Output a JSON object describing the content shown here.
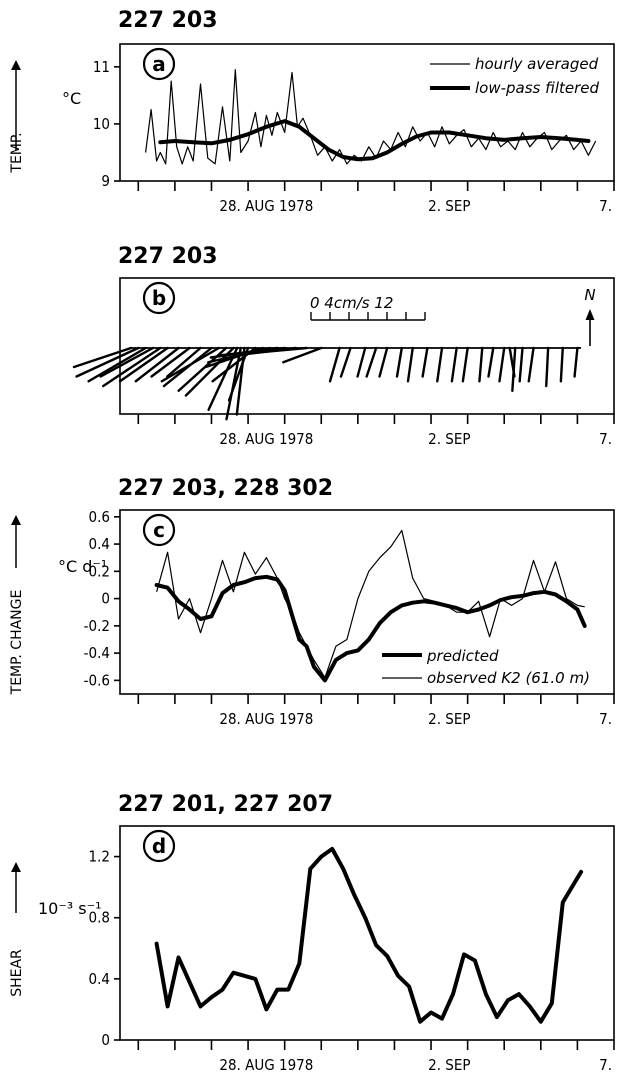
{
  "chart_data": [
    {
      "id": "a",
      "type": "line",
      "title": "227 203",
      "panel_label": "a",
      "ylabel": "TEMP.",
      "yunit": "°C",
      "ylim": [
        9,
        11.4
      ],
      "yticks": [
        {
          "v": 9,
          "label": "9"
        },
        {
          "v": 10,
          "label": "10"
        },
        {
          "v": 11,
          "label": "11"
        }
      ],
      "xlim": [
        24,
        37.5
      ],
      "xticks": [
        24.5,
        25.5,
        26.5,
        27.5,
        28.5,
        29.5,
        30.5,
        31.5,
        32.5,
        33.5,
        34.5,
        35.5,
        36.5,
        37.5
      ],
      "xlabels": [
        {
          "x": 28,
          "label": "28. AUG 1978"
        },
        {
          "x": 33,
          "label": "2. SEP"
        },
        {
          "x": 37.5,
          "label": "7."
        }
      ],
      "legend": [
        "hourly averaged",
        "low-pass filtered"
      ],
      "series": [
        {
          "name": "hourly averaged",
          "style": "thin",
          "x": [
            24.7,
            24.85,
            25.0,
            25.1,
            25.25,
            25.4,
            25.55,
            25.7,
            25.85,
            26.0,
            26.2,
            26.4,
            26.6,
            26.8,
            27.0,
            27.15,
            27.3,
            27.5,
            27.7,
            27.85,
            28.0,
            28.15,
            28.3,
            28.5,
            28.7,
            28.85,
            29.0,
            29.2,
            29.4,
            29.6,
            29.8,
            30.0,
            30.2,
            30.4,
            30.6,
            30.8,
            31.0,
            31.2,
            31.4,
            31.6,
            31.8,
            32.0,
            32.2,
            32.4,
            32.6,
            32.8,
            33.0,
            33.2,
            33.4,
            33.6,
            33.8,
            34.0,
            34.2,
            34.4,
            34.6,
            34.8,
            35.0,
            35.2,
            35.4,
            35.6,
            35.8,
            36.0,
            36.2,
            36.4,
            36.6,
            36.8,
            37.0
          ],
          "y": [
            9.5,
            10.25,
            9.35,
            9.5,
            9.3,
            10.75,
            9.6,
            9.3,
            9.6,
            9.35,
            10.7,
            9.4,
            9.3,
            10.3,
            9.35,
            10.95,
            9.5,
            9.7,
            10.2,
            9.6,
            10.15,
            9.8,
            10.2,
            9.85,
            10.9,
            9.95,
            10.1,
            9.8,
            9.45,
            9.6,
            9.35,
            9.55,
            9.3,
            9.45,
            9.35,
            9.6,
            9.4,
            9.7,
            9.55,
            9.85,
            9.6,
            9.95,
            9.7,
            9.85,
            9.6,
            9.95,
            9.65,
            9.8,
            9.9,
            9.6,
            9.75,
            9.55,
            9.85,
            9.6,
            9.7,
            9.55,
            9.85,
            9.6,
            9.75,
            9.85,
            9.55,
            9.7,
            9.8,
            9.55,
            9.7,
            9.45,
            9.7
          ]
        },
        {
          "name": "low-pass filtered",
          "style": "thick",
          "x": [
            25.1,
            25.5,
            26.0,
            26.5,
            27.0,
            27.5,
            28.0,
            28.5,
            28.9,
            29.3,
            29.7,
            30.1,
            30.5,
            30.9,
            31.3,
            31.7,
            32.1,
            32.5,
            33.0,
            33.5,
            34.0,
            34.5,
            35.0,
            35.5,
            36.0,
            36.5,
            36.8
          ],
          "y": [
            9.68,
            9.7,
            9.68,
            9.66,
            9.72,
            9.82,
            9.95,
            10.05,
            9.95,
            9.75,
            9.55,
            9.42,
            9.38,
            9.4,
            9.5,
            9.65,
            9.78,
            9.85,
            9.85,
            9.8,
            9.75,
            9.72,
            9.75,
            9.77,
            9.75,
            9.72,
            9.7
          ]
        }
      ]
    },
    {
      "id": "b",
      "type": "stick",
      "title": "227 203",
      "panel_label": "b",
      "scale_label": "0  4cm/s 12",
      "scale_range": [
        0,
        12
      ],
      "north_label": "N",
      "xlim": [
        24,
        37.5
      ],
      "xticks": [
        24.5,
        25.5,
        26.5,
        27.5,
        28.5,
        29.5,
        30.5,
        31.5,
        32.5,
        33.5,
        34.5,
        35.5,
        36.5,
        37.5
      ],
      "xlabels": [
        {
          "x": 28,
          "label": "28. AUG 1978"
        },
        {
          "x": 33,
          "label": "2. SEP"
        },
        {
          "x": 37.5,
          "label": "7."
        }
      ],
      "sticks": [
        {
          "x": 24.3,
          "u": -6.0,
          "v": -2.0
        },
        {
          "x": 24.5,
          "u": -6.5,
          "v": -3.0
        },
        {
          "x": 24.7,
          "u": -6.0,
          "v": -3.5
        },
        {
          "x": 24.9,
          "u": -5.5,
          "v": -3.0
        },
        {
          "x": 25.1,
          "u": -6.0,
          "v": -4.0
        },
        {
          "x": 25.3,
          "u": -5.0,
          "v": -3.5
        },
        {
          "x": 25.6,
          "u": -4.5,
          "v": -3.5
        },
        {
          "x": 25.9,
          "u": -4.0,
          "v": -3.0
        },
        {
          "x": 26.2,
          "u": -3.5,
          "v": -3.0
        },
        {
          "x": 26.5,
          "u": -5.0,
          "v": -4.0
        },
        {
          "x": 26.7,
          "u": -6.0,
          "v": -3.5
        },
        {
          "x": 26.9,
          "u": -5.0,
          "v": -4.5
        },
        {
          "x": 27.1,
          "u": -5.0,
          "v": -5.0
        },
        {
          "x": 27.2,
          "u": -3.0,
          "v": -6.5
        },
        {
          "x": 27.3,
          "u": -1.5,
          "v": -7.5
        },
        {
          "x": 27.4,
          "u": -0.8,
          "v": -7.0
        },
        {
          "x": 27.5,
          "u": -2.0,
          "v": -5.5
        },
        {
          "x": 27.7,
          "u": -4.5,
          "v": -3.5
        },
        {
          "x": 27.9,
          "u": -6.0,
          "v": -2.0
        },
        {
          "x": 28.1,
          "u": -6.5,
          "v": -1.5
        },
        {
          "x": 28.3,
          "u": -7.0,
          "v": -1.0
        },
        {
          "x": 28.5,
          "u": -7.0,
          "v": -0.8
        },
        {
          "x": 28.8,
          "u": -6.5,
          "v": -0.8
        },
        {
          "x": 29.1,
          "u": -5.5,
          "v": -0.5
        },
        {
          "x": 29.5,
          "u": -4.0,
          "v": -1.5
        },
        {
          "x": 30.0,
          "u": -1.0,
          "v": -3.5
        },
        {
          "x": 30.3,
          "u": -1.0,
          "v": -3.0
        },
        {
          "x": 30.7,
          "u": -0.8,
          "v": -3.0
        },
        {
          "x": 31.0,
          "u": -1.0,
          "v": -3.0
        },
        {
          "x": 31.3,
          "u": -0.8,
          "v": -3.0
        },
        {
          "x": 31.7,
          "u": -0.5,
          "v": -3.0
        },
        {
          "x": 32.0,
          "u": -0.5,
          "v": -3.5
        },
        {
          "x": 32.4,
          "u": -0.5,
          "v": -3.0
        },
        {
          "x": 32.8,
          "u": -0.5,
          "v": -3.5
        },
        {
          "x": 33.2,
          "u": -0.5,
          "v": -3.5
        },
        {
          "x": 33.5,
          "u": -0.5,
          "v": -3.5
        },
        {
          "x": 33.9,
          "u": -0.3,
          "v": -3.5
        },
        {
          "x": 34.2,
          "u": -0.5,
          "v": -3.0
        },
        {
          "x": 34.5,
          "u": -0.5,
          "v": -3.5
        },
        {
          "x": 34.65,
          "u": 0.5,
          "v": -3.0
        },
        {
          "x": 34.8,
          "u": -0.3,
          "v": -4.5
        },
        {
          "x": 35.0,
          "u": -0.3,
          "v": -3.5
        },
        {
          "x": 35.3,
          "u": -0.5,
          "v": -3.5
        },
        {
          "x": 35.7,
          "u": -0.2,
          "v": -4.0
        },
        {
          "x": 36.1,
          "u": -0.2,
          "v": -3.5
        },
        {
          "x": 36.5,
          "u": -0.3,
          "v": -3.0
        }
      ]
    },
    {
      "id": "c",
      "type": "line",
      "title": "227 203,  228 302",
      "panel_label": "c",
      "ylabel": "TEMP. CHANGE",
      "yunit": "°C d⁻¹",
      "ylim": [
        -0.7,
        0.65
      ],
      "yticks": [
        {
          "v": 0.6,
          "label": "0.6"
        },
        {
          "v": 0.4,
          "label": "0.4"
        },
        {
          "v": 0.2,
          "label": "0.2"
        },
        {
          "v": 0,
          "label": "0"
        },
        {
          "v": -0.2,
          "label": "-0.2"
        },
        {
          "v": -0.4,
          "label": "-0.4"
        },
        {
          "v": -0.6,
          "label": "-0.6"
        }
      ],
      "xlim": [
        24,
        37.5
      ],
      "xticks": [
        24.5,
        25.5,
        26.5,
        27.5,
        28.5,
        29.5,
        30.5,
        31.5,
        32.5,
        33.5,
        34.5,
        35.5,
        36.5,
        37.5
      ],
      "xlabels": [
        {
          "x": 28,
          "label": "28. AUG 1978"
        },
        {
          "x": 33,
          "label": "2. SEP"
        },
        {
          "x": 37.5,
          "label": "7."
        }
      ],
      "legend": [
        "predicted",
        "observed K2 (61.0 m)"
      ],
      "series": [
        {
          "name": "predicted",
          "style": "thick",
          "x": [
            25.0,
            25.3,
            25.6,
            25.9,
            26.2,
            26.5,
            26.8,
            27.1,
            27.4,
            27.7,
            28.0,
            28.3,
            28.5,
            28.7,
            28.9,
            29.1,
            29.3,
            29.6,
            29.9,
            30.2,
            30.5,
            30.8,
            31.1,
            31.4,
            31.7,
            32.0,
            32.3,
            32.6,
            32.9,
            33.2,
            33.5,
            33.8,
            34.1,
            34.4,
            34.7,
            35.0,
            35.3,
            35.6,
            35.9,
            36.2,
            36.5,
            36.7
          ],
          "y": [
            0.1,
            0.08,
            -0.02,
            -0.08,
            -0.15,
            -0.13,
            0.04,
            0.1,
            0.12,
            0.15,
            0.16,
            0.14,
            0.06,
            -0.12,
            -0.3,
            -0.35,
            -0.5,
            -0.6,
            -0.45,
            -0.4,
            -0.38,
            -0.3,
            -0.18,
            -0.1,
            -0.05,
            -0.03,
            -0.02,
            -0.03,
            -0.05,
            -0.07,
            -0.1,
            -0.08,
            -0.05,
            -0.01,
            0.01,
            0.02,
            0.04,
            0.05,
            0.03,
            -0.02,
            -0.08,
            -0.2
          ]
        },
        {
          "name": "observed K2 (61.0 m)",
          "style": "thin",
          "x": [
            25.0,
            25.3,
            25.6,
            25.9,
            26.2,
            26.5,
            26.8,
            27.1,
            27.4,
            27.7,
            28.0,
            28.3,
            28.5,
            28.7,
            28.9,
            29.1,
            29.3,
            29.6,
            29.9,
            30.2,
            30.5,
            30.8,
            31.1,
            31.4,
            31.7,
            32.0,
            32.3,
            32.6,
            32.9,
            33.2,
            33.5,
            33.8,
            34.1,
            34.4,
            34.7,
            35.0,
            35.3,
            35.6,
            35.9,
            36.2,
            36.5,
            36.7
          ],
          "y": [
            0.05,
            0.34,
            -0.15,
            0.0,
            -0.25,
            0.0,
            0.28,
            0.05,
            0.34,
            0.18,
            0.3,
            0.15,
            0.0,
            -0.1,
            -0.25,
            -0.35,
            -0.45,
            -0.58,
            -0.35,
            -0.3,
            0.0,
            0.2,
            0.3,
            0.38,
            0.5,
            0.15,
            0.0,
            -0.02,
            -0.05,
            -0.1,
            -0.1,
            -0.02,
            -0.28,
            0.0,
            -0.05,
            0.0,
            0.28,
            0.05,
            0.27,
            0.0,
            -0.05,
            -0.06
          ]
        }
      ]
    },
    {
      "id": "d",
      "type": "line",
      "title": "227 201,  227 207",
      "panel_label": "d",
      "ylabel": "SHEAR",
      "yunit": "10⁻³ s⁻¹",
      "ylim": [
        0,
        1.4
      ],
      "yticks": [
        {
          "v": 0,
          "label": "0"
        },
        {
          "v": 0.4,
          "label": "0.4"
        },
        {
          "v": 0.8,
          "label": "0.8"
        },
        {
          "v": 1.2,
          "label": "1.2"
        }
      ],
      "xlim": [
        24,
        37.5
      ],
      "xticks": [
        24.5,
        25.5,
        26.5,
        27.5,
        28.5,
        29.5,
        30.5,
        31.5,
        32.5,
        33.5,
        34.5,
        35.5,
        36.5,
        37.5
      ],
      "xlabels": [
        {
          "x": 28,
          "label": "28. AUG 1978"
        },
        {
          "x": 33,
          "label": "2. SEP"
        },
        {
          "x": 37.5,
          "label": "7."
        }
      ],
      "series": [
        {
          "name": "",
          "style": "thick",
          "x": [
            25.0,
            25.3,
            25.6,
            25.9,
            26.2,
            26.5,
            26.8,
            27.1,
            27.4,
            27.7,
            28.0,
            28.3,
            28.6,
            28.9,
            29.2,
            29.5,
            29.8,
            30.1,
            30.4,
            30.7,
            31.0,
            31.3,
            31.6,
            31.9,
            32.2,
            32.5,
            32.8,
            33.1,
            33.4,
            33.7,
            34.0,
            34.3,
            34.6,
            34.9,
            35.2,
            35.5,
            35.8,
            36.1,
            36.4,
            36.6
          ],
          "y": [
            0.63,
            0.22,
            0.54,
            0.38,
            0.22,
            0.28,
            0.33,
            0.44,
            0.42,
            0.4,
            0.2,
            0.33,
            0.33,
            0.5,
            1.12,
            1.2,
            1.25,
            1.12,
            0.95,
            0.8,
            0.62,
            0.55,
            0.42,
            0.35,
            0.12,
            0.18,
            0.14,
            0.3,
            0.56,
            0.52,
            0.3,
            0.15,
            0.26,
            0.3,
            0.22,
            0.12,
            0.24,
            0.9,
            1.02,
            1.1
          ]
        }
      ]
    }
  ]
}
